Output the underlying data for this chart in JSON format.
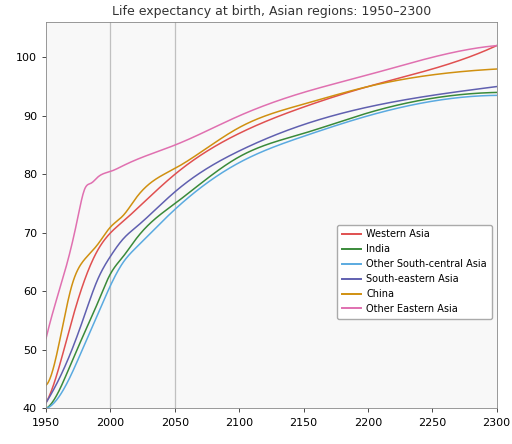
{
  "title": "Life expectancy at birth, Asian regions: 1950–2300",
  "xlim": [
    1950,
    2300
  ],
  "ylim": [
    40,
    106
  ],
  "yticks": [
    40,
    50,
    60,
    70,
    80,
    90,
    100
  ],
  "xticks": [
    1950,
    2000,
    2050,
    2100,
    2150,
    2200,
    2250,
    2300
  ],
  "vlines": [
    2000,
    2050
  ],
  "vline_color": "#c0c0c0",
  "series": {
    "Western Asia": {
      "color": "#e05050",
      "points": [
        [
          1950,
          41
        ],
        [
          1960,
          47
        ],
        [
          1970,
          55
        ],
        [
          1980,
          62
        ],
        [
          1990,
          67
        ],
        [
          2000,
          70
        ],
        [
          2010,
          72
        ],
        [
          2020,
          74
        ],
        [
          2050,
          80
        ],
        [
          2100,
          87
        ],
        [
          2150,
          91.5
        ],
        [
          2200,
          95
        ],
        [
          2250,
          98
        ],
        [
          2300,
          102
        ]
      ]
    },
    "India": {
      "color": "#3a8a3a",
      "points": [
        [
          1950,
          40
        ],
        [
          1960,
          43
        ],
        [
          1970,
          48
        ],
        [
          1980,
          53
        ],
        [
          1990,
          58
        ],
        [
          2000,
          63
        ],
        [
          2010,
          66
        ],
        [
          2020,
          69
        ],
        [
          2050,
          75
        ],
        [
          2100,
          83
        ],
        [
          2150,
          87
        ],
        [
          2200,
          90.5
        ],
        [
          2250,
          93
        ],
        [
          2300,
          94
        ]
      ]
    },
    "Other South-central Asia": {
      "color": "#5aaae0",
      "points": [
        [
          1950,
          40
        ],
        [
          1960,
          42
        ],
        [
          1970,
          46
        ],
        [
          1980,
          51
        ],
        [
          1990,
          56
        ],
        [
          2000,
          61
        ],
        [
          2010,
          65
        ],
        [
          2020,
          67.5
        ],
        [
          2050,
          74
        ],
        [
          2100,
          82
        ],
        [
          2150,
          86.5
        ],
        [
          2200,
          90
        ],
        [
          2250,
          92.5
        ],
        [
          2300,
          93.5
        ]
      ]
    },
    "South-eastern Asia": {
      "color": "#6060b0",
      "points": [
        [
          1950,
          41
        ],
        [
          1960,
          45
        ],
        [
          1970,
          50
        ],
        [
          1980,
          56
        ],
        [
          1990,
          62
        ],
        [
          2000,
          66
        ],
        [
          2010,
          69
        ],
        [
          2020,
          71
        ],
        [
          2050,
          77
        ],
        [
          2100,
          84
        ],
        [
          2150,
          88.5
        ],
        [
          2200,
          91.5
        ],
        [
          2250,
          93.5
        ],
        [
          2300,
          95
        ]
      ]
    },
    "China": {
      "color": "#d09010",
      "points": [
        [
          1950,
          44
        ],
        [
          1960,
          51
        ],
        [
          1970,
          61
        ],
        [
          1980,
          65.5
        ],
        [
          1990,
          68
        ],
        [
          2000,
          71
        ],
        [
          2005,
          72
        ],
        [
          2010,
          73
        ],
        [
          2020,
          76
        ],
        [
          2050,
          81
        ],
        [
          2100,
          88
        ],
        [
          2150,
          92
        ],
        [
          2200,
          95
        ],
        [
          2250,
          97
        ],
        [
          2300,
          98
        ]
      ]
    },
    "Other Eastern Asia": {
      "color": "#e070b0",
      "points": [
        [
          1950,
          52
        ],
        [
          1960,
          60
        ],
        [
          1970,
          68
        ],
        [
          1975,
          73
        ],
        [
          1980,
          77.5
        ],
        [
          1985,
          78.5
        ],
        [
          1990,
          79.5
        ],
        [
          2000,
          80.5
        ],
        [
          2010,
          81.5
        ],
        [
          2020,
          82.5
        ],
        [
          2050,
          85
        ],
        [
          2100,
          90
        ],
        [
          2150,
          94
        ],
        [
          2200,
          97
        ],
        [
          2250,
          100
        ],
        [
          2300,
          102
        ]
      ]
    }
  },
  "legend_entries": [
    "Western Asia",
    "India",
    "Other South-central Asia",
    "South-eastern Asia",
    "China",
    "Other Eastern Asia"
  ],
  "figsize": [
    5.12,
    4.44
  ],
  "dpi": 100,
  "title_fontsize": 9,
  "tick_fontsize": 8,
  "legend_fontsize": 7,
  "linewidth": 1.1
}
